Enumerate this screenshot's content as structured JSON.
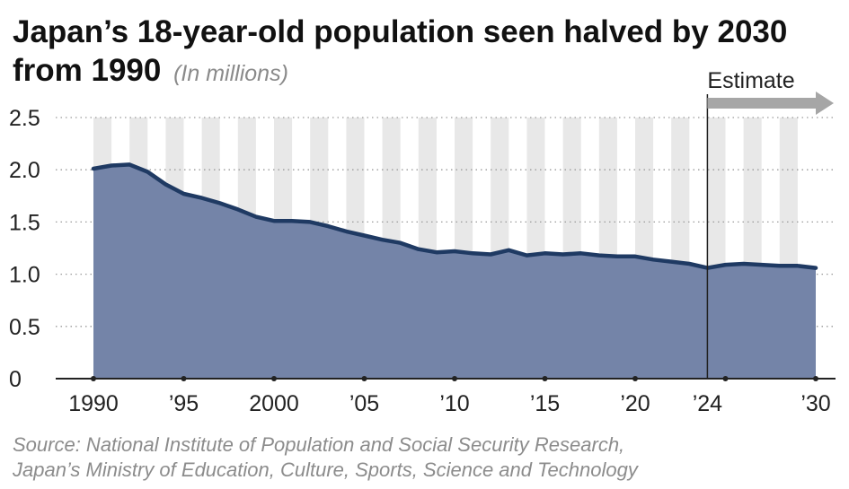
{
  "title": {
    "main": "Japan’s 18-year-old population seen halved by 2030 from 1990",
    "unit": "(In millions)"
  },
  "source": {
    "line1": "Source: National Institute of Population and Social Security Research,",
    "line2": "Japan’s Ministry of Education, Culture, Sports, Science and Technology"
  },
  "colors": {
    "area_fill": "#7484a8",
    "line": "#1f3a63",
    "stripe": "#e8e8e8",
    "arrow": "#a6a6a6"
  },
  "chart_data": {
    "type": "area",
    "title": "Japan’s 18-year-old population seen halved by 2030 from 1990",
    "ylabel": "(In millions)",
    "xlabel": "",
    "x": [
      1990,
      1991,
      1992,
      1993,
      1994,
      1995,
      1996,
      1997,
      1998,
      1999,
      2000,
      2001,
      2002,
      2003,
      2004,
      2005,
      2006,
      2007,
      2008,
      2009,
      2010,
      2011,
      2012,
      2013,
      2014,
      2015,
      2016,
      2017,
      2018,
      2019,
      2020,
      2021,
      2022,
      2023,
      2024,
      2025,
      2026,
      2027,
      2028,
      2029,
      2030
    ],
    "values": [
      2.01,
      2.04,
      2.05,
      1.98,
      1.86,
      1.77,
      1.73,
      1.68,
      1.62,
      1.55,
      1.51,
      1.51,
      1.5,
      1.46,
      1.41,
      1.37,
      1.33,
      1.3,
      1.24,
      1.21,
      1.22,
      1.2,
      1.19,
      1.23,
      1.18,
      1.2,
      1.19,
      1.2,
      1.18,
      1.17,
      1.17,
      1.14,
      1.12,
      1.1,
      1.06,
      1.09,
      1.1,
      1.09,
      1.08,
      1.08,
      1.06
    ],
    "xlim": [
      1990,
      2030
    ],
    "ylim": [
      0,
      2.5
    ],
    "yticks": [
      {
        "value": 0,
        "label": "0"
      },
      {
        "value": 0.5,
        "label": "0.5"
      },
      {
        "value": 1.0,
        "label": "1.0"
      },
      {
        "value": 1.5,
        "label": "1.5"
      },
      {
        "value": 2.0,
        "label": "2.0"
      },
      {
        "value": 2.5,
        "label": "2.5"
      }
    ],
    "xticks": [
      {
        "value": 1990,
        "label": "1990"
      },
      {
        "value": 1995,
        "label": "’95"
      },
      {
        "value": 2000,
        "label": "2000"
      },
      {
        "value": 2005,
        "label": "’05"
      },
      {
        "value": 2010,
        "label": "’10"
      },
      {
        "value": 2015,
        "label": "’15"
      },
      {
        "value": 2020,
        "label": "’20"
      },
      {
        "value": 2024,
        "label": "’24"
      },
      {
        "value": 2030,
        "label": "’30"
      }
    ],
    "estimate_start": 2024,
    "estimate_label": "Estimate",
    "grid": true,
    "legend": "none"
  }
}
